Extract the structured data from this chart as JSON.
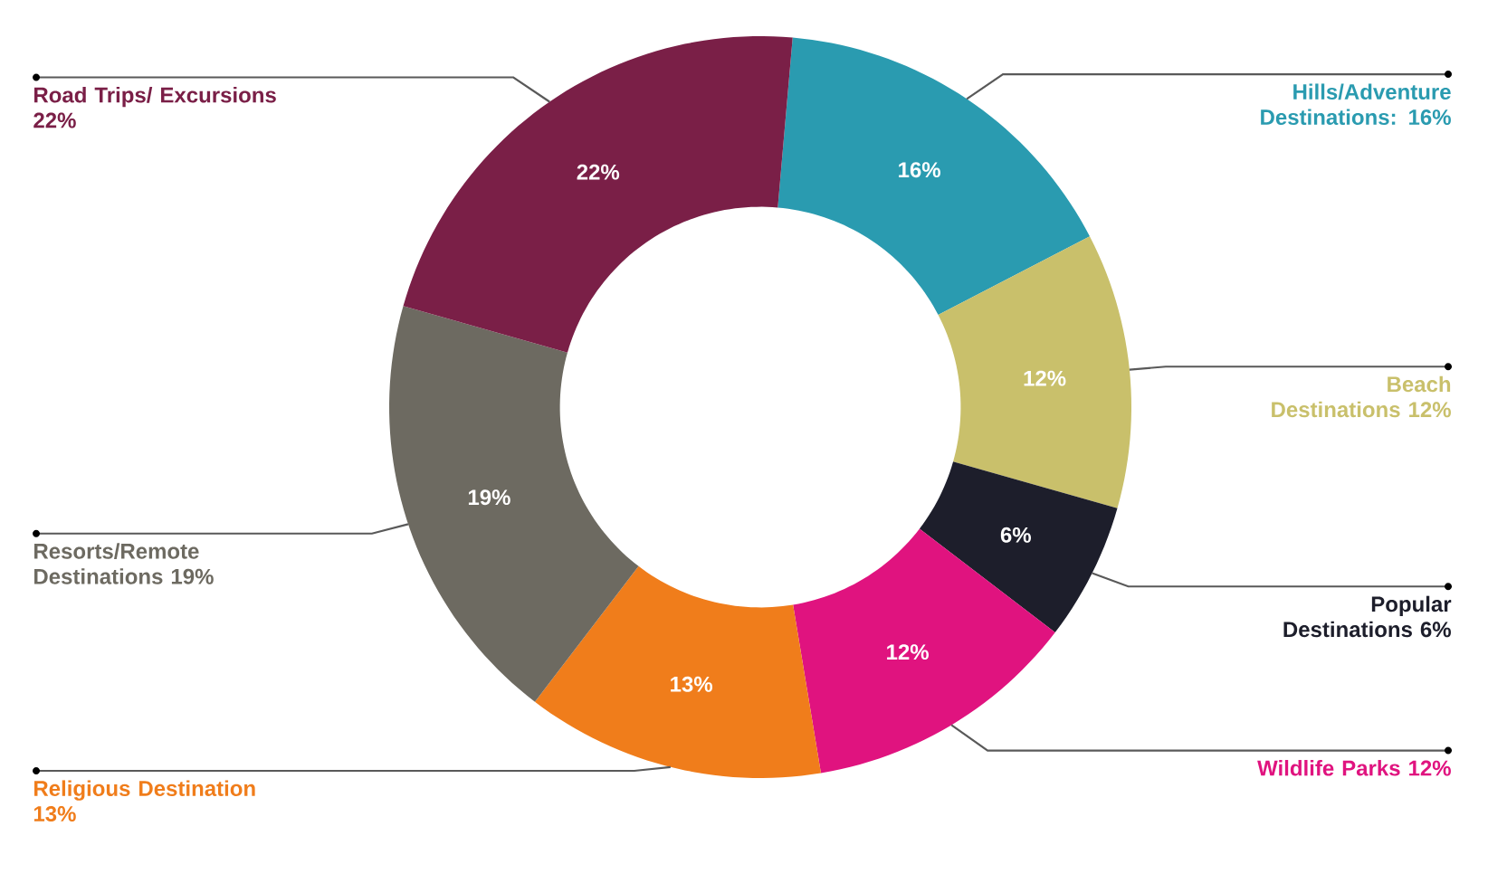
{
  "chart_data": {
    "type": "donut",
    "categories": [
      "Hills/Adventure Destinations: 16%",
      "Beach Destinations 12%",
      "Popular Destinations 6%",
      "Wildlife Parks 12%",
      "Religious Destination 13%",
      "Resorts/Remote Destinations 19%",
      "Road Trips/ Excursions 22%"
    ],
    "values": [
      16,
      12,
      6,
      12,
      13,
      19,
      22
    ],
    "value_labels": [
      "16%",
      "12%",
      "6%",
      "12%",
      "13%",
      "19%",
      "22%"
    ],
    "colors": [
      "#2a9bb0",
      "#c9c06b",
      "#1d1e2b",
      "#e0137f",
      "#f07d1b",
      "#6d6a61",
      "#7a1f47"
    ]
  }
}
